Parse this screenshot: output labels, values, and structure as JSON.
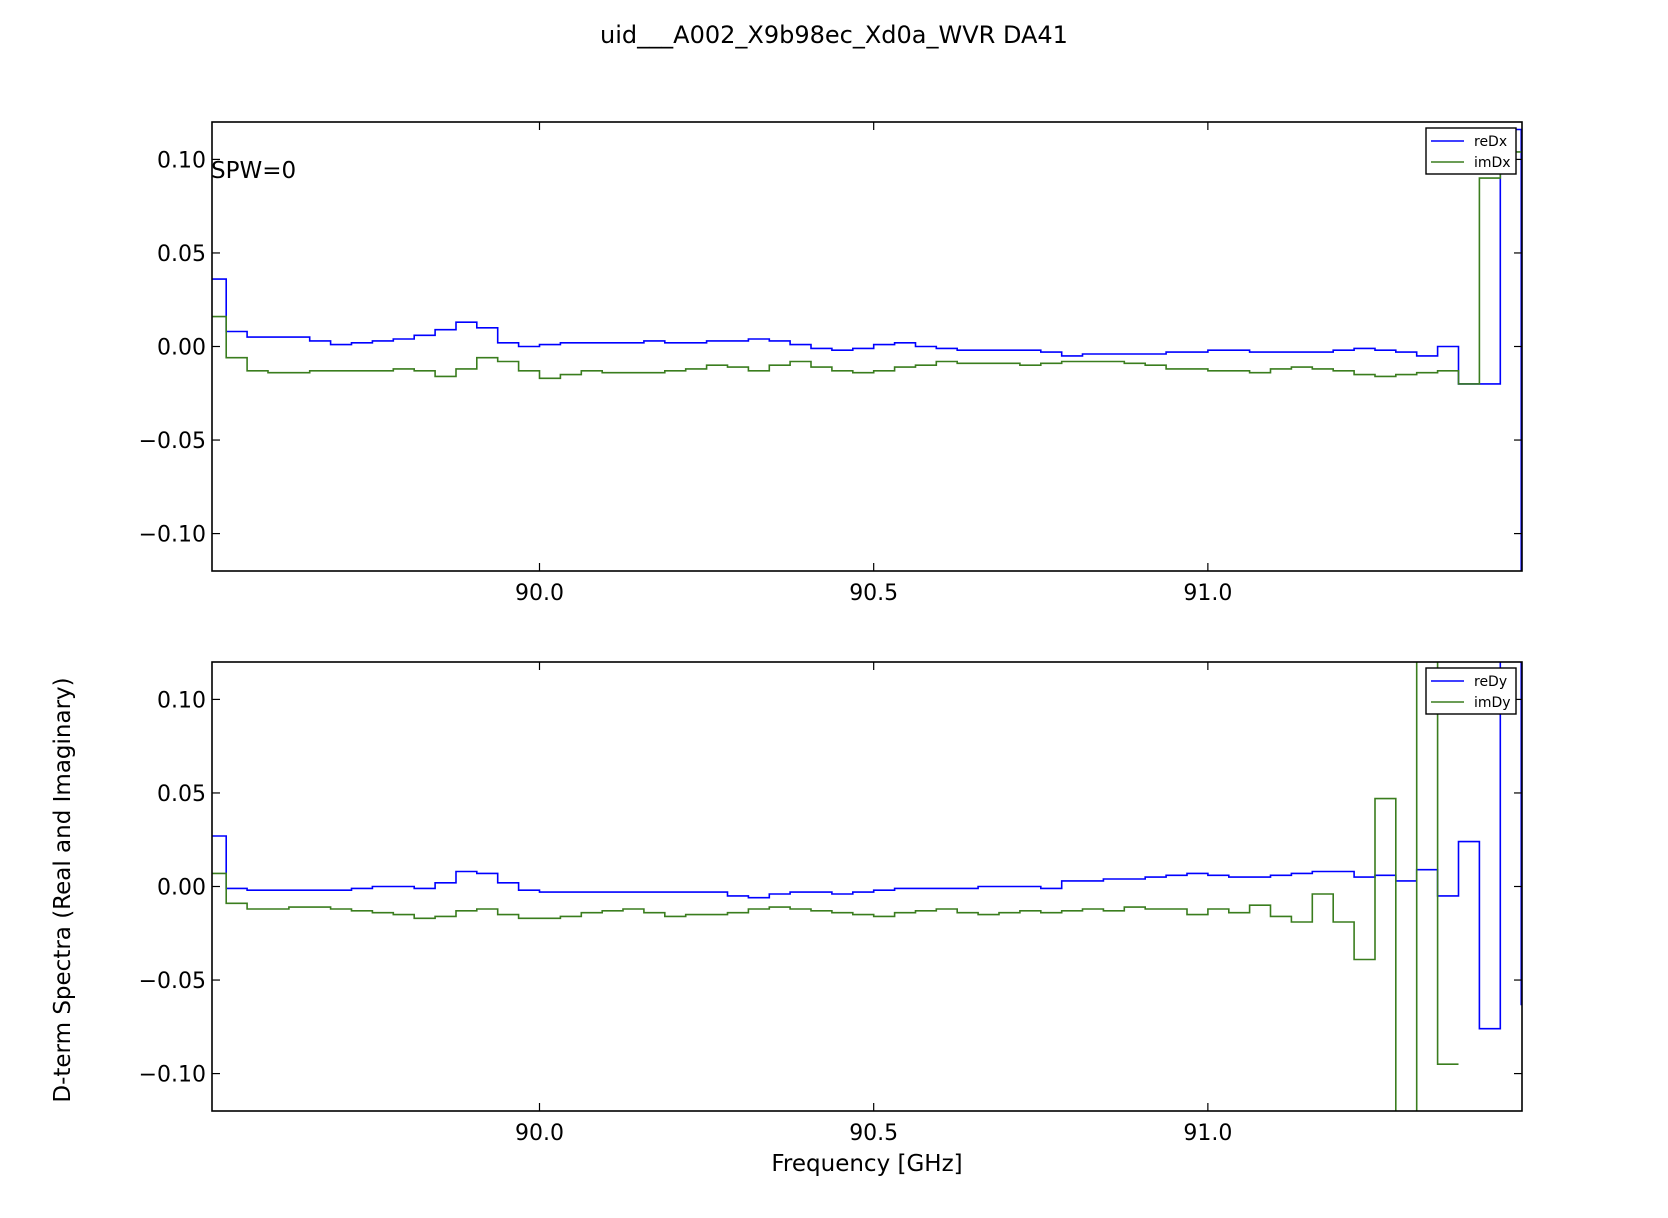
{
  "figure": {
    "title": "uid___A002_X9b98ec_Xd0a_WVR DA41",
    "xlabel": "Frequency [GHz]",
    "ylabel": "D-term Spectra (Real and Imaginary)"
  },
  "colors": {
    "blue": "#0000ff",
    "green": "#3a7d1e"
  },
  "chart_data": [
    {
      "type": "line",
      "step": true,
      "annotation": "SPW=0",
      "xlim": [
        89.51,
        91.47
      ],
      "ylim": [
        -0.12,
        0.12
      ],
      "xticks": [
        90.0,
        90.5,
        91.0
      ],
      "xticklabels": [
        "90.0",
        "90.5",
        "91.0"
      ],
      "yticks": [
        0.1,
        0.05,
        0.0,
        -0.05,
        -0.1
      ],
      "yticklabels": [
        "0.10",
        "0.05",
        "0.00",
        "−0.05",
        "−0.10"
      ],
      "legend_position": "top-right",
      "x_start": 89.5,
      "x_step": 0.03125,
      "series": [
        {
          "name": "reDx",
          "color": "#0000ff",
          "values": [
            0.036,
            0.008,
            0.005,
            0.005,
            0.005,
            0.003,
            0.001,
            0.002,
            0.003,
            0.004,
            0.006,
            0.009,
            0.013,
            0.01,
            0.002,
            0.0,
            0.001,
            0.002,
            0.002,
            0.002,
            0.002,
            0.003,
            0.002,
            0.002,
            0.003,
            0.003,
            0.004,
            0.003,
            0.001,
            -0.001,
            -0.002,
            -0.001,
            0.001,
            0.002,
            0.0,
            -0.001,
            -0.002,
            -0.002,
            -0.002,
            -0.002,
            -0.003,
            -0.005,
            -0.004,
            -0.004,
            -0.004,
            -0.004,
            -0.003,
            -0.003,
            -0.002,
            -0.002,
            -0.003,
            -0.003,
            -0.003,
            -0.003,
            -0.002,
            -0.001,
            -0.002,
            -0.003,
            -0.005,
            0.0,
            -0.02,
            -0.02,
            0.116,
            -0.15
          ]
        },
        {
          "name": "imDx",
          "color": "#3a7d1e",
          "values": [
            0.016,
            -0.006,
            -0.013,
            -0.014,
            -0.014,
            -0.013,
            -0.013,
            -0.013,
            -0.013,
            -0.012,
            -0.013,
            -0.016,
            -0.012,
            -0.006,
            -0.008,
            -0.013,
            -0.017,
            -0.015,
            -0.013,
            -0.014,
            -0.014,
            -0.014,
            -0.013,
            -0.012,
            -0.01,
            -0.011,
            -0.013,
            -0.01,
            -0.008,
            -0.011,
            -0.013,
            -0.014,
            -0.013,
            -0.011,
            -0.01,
            -0.008,
            -0.009,
            -0.009,
            -0.009,
            -0.01,
            -0.009,
            -0.008,
            -0.008,
            -0.008,
            -0.009,
            -0.01,
            -0.012,
            -0.012,
            -0.013,
            -0.013,
            -0.014,
            -0.012,
            -0.011,
            -0.012,
            -0.013,
            -0.015,
            -0.016,
            -0.015,
            -0.014,
            -0.013,
            -0.02,
            0.09,
            0.104
          ]
        }
      ]
    },
    {
      "type": "line",
      "step": true,
      "annotation": "",
      "xlim": [
        89.51,
        91.47
      ],
      "ylim": [
        -0.12,
        0.12
      ],
      "xticks": [
        90.0,
        90.5,
        91.0
      ],
      "xticklabels": [
        "90.0",
        "90.5",
        "91.0"
      ],
      "yticks": [
        0.1,
        0.05,
        0.0,
        -0.05,
        -0.1
      ],
      "yticklabels": [
        "0.10",
        "0.05",
        "0.00",
        "−0.05",
        "−0.10"
      ],
      "legend_position": "top-right",
      "x_start": 89.5,
      "x_step": 0.03125,
      "series": [
        {
          "name": "reDy",
          "color": "#0000ff",
          "values": [
            0.027,
            -0.001,
            -0.002,
            -0.002,
            -0.002,
            -0.002,
            -0.002,
            -0.001,
            0.0,
            0.0,
            -0.001,
            0.002,
            0.008,
            0.007,
            0.002,
            -0.002,
            -0.003,
            -0.003,
            -0.003,
            -0.003,
            -0.003,
            -0.003,
            -0.003,
            -0.003,
            -0.003,
            -0.005,
            -0.006,
            -0.004,
            -0.003,
            -0.003,
            -0.004,
            -0.003,
            -0.002,
            -0.001,
            -0.001,
            -0.001,
            -0.001,
            0.0,
            0.0,
            0.0,
            -0.001,
            0.003,
            0.003,
            0.004,
            0.004,
            0.005,
            0.006,
            0.007,
            0.006,
            0.005,
            0.005,
            0.006,
            0.007,
            0.008,
            0.008,
            0.005,
            0.006,
            0.003,
            0.009,
            -0.005,
            0.024,
            -0.076,
            0.15,
            -0.063
          ]
        },
        {
          "name": "imDy",
          "color": "#3a7d1e",
          "values": [
            0.007,
            -0.009,
            -0.012,
            -0.012,
            -0.011,
            -0.011,
            -0.012,
            -0.013,
            -0.014,
            -0.015,
            -0.017,
            -0.016,
            -0.013,
            -0.012,
            -0.015,
            -0.017,
            -0.017,
            -0.016,
            -0.014,
            -0.013,
            -0.012,
            -0.014,
            -0.016,
            -0.015,
            -0.015,
            -0.014,
            -0.012,
            -0.011,
            -0.012,
            -0.013,
            -0.014,
            -0.015,
            -0.016,
            -0.014,
            -0.013,
            -0.012,
            -0.014,
            -0.015,
            -0.014,
            -0.013,
            -0.014,
            -0.013,
            -0.012,
            -0.013,
            -0.011,
            -0.012,
            -0.012,
            -0.015,
            -0.012,
            -0.014,
            -0.01,
            -0.016,
            -0.019,
            -0.004,
            -0.019,
            -0.039,
            0.047,
            -0.15,
            0.15,
            -0.095
          ]
        }
      ]
    }
  ]
}
